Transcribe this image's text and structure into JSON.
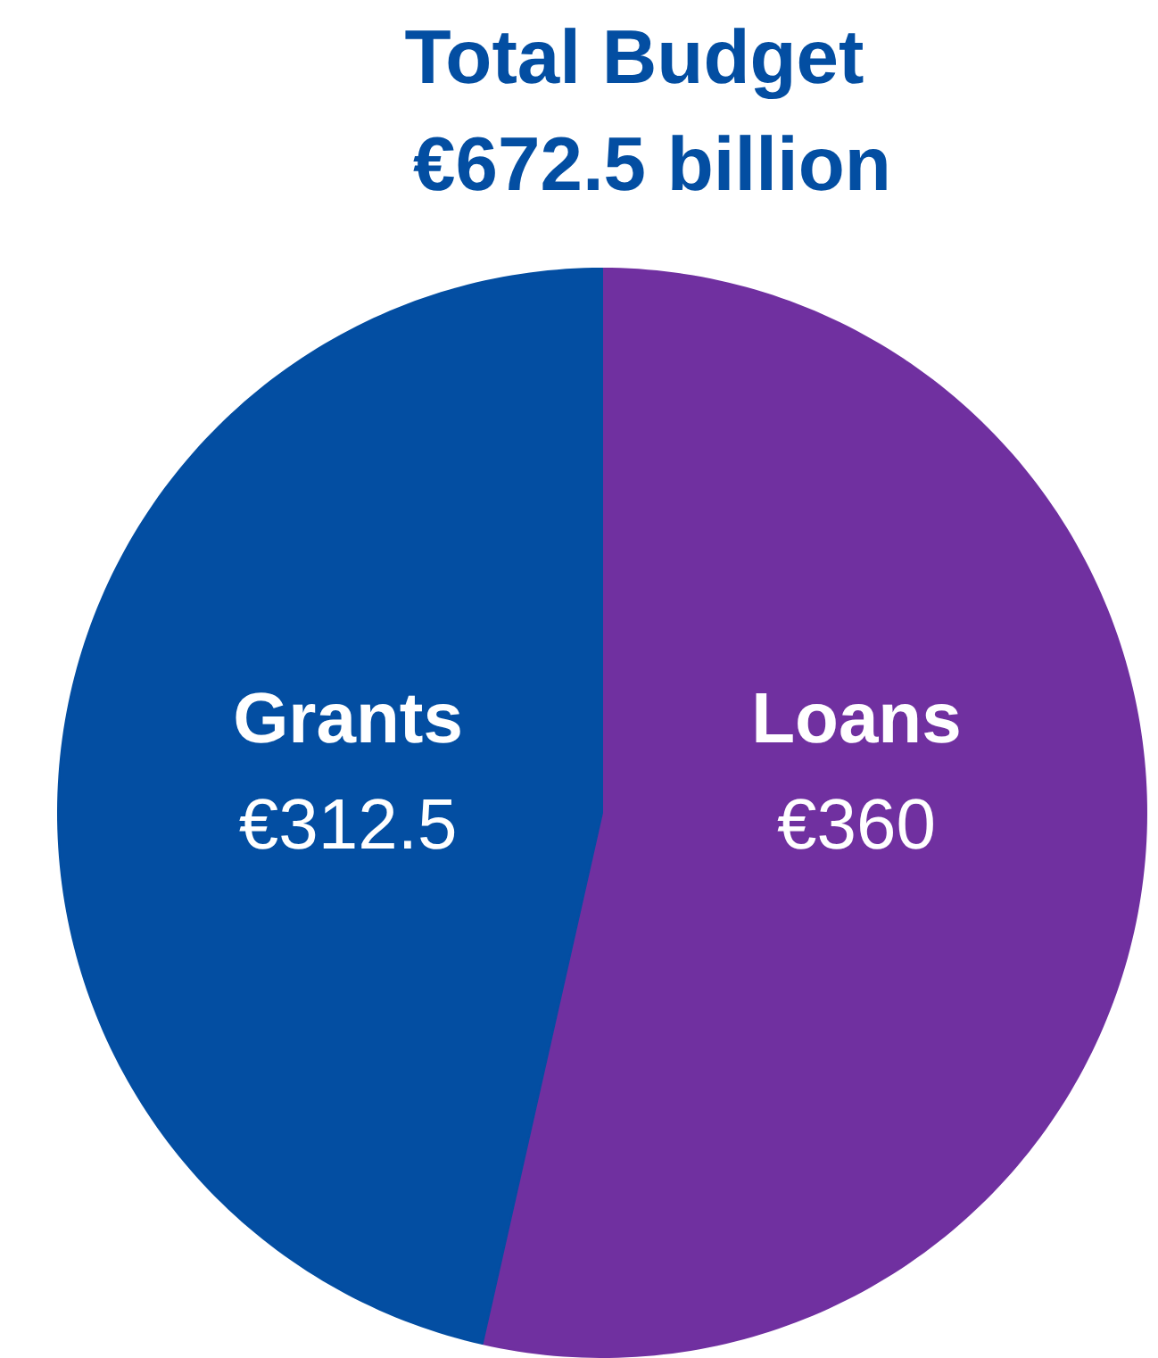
{
  "chart_data": {
    "type": "pie",
    "title": "Total Budget",
    "subtitle": "€672.5 billion",
    "categories": [
      "Loans",
      "Grants"
    ],
    "values": [
      360,
      312.5
    ],
    "colors": [
      "#7030a0",
      "#034ea2"
    ],
    "value_labels": [
      "€360",
      "€312.5"
    ]
  }
}
